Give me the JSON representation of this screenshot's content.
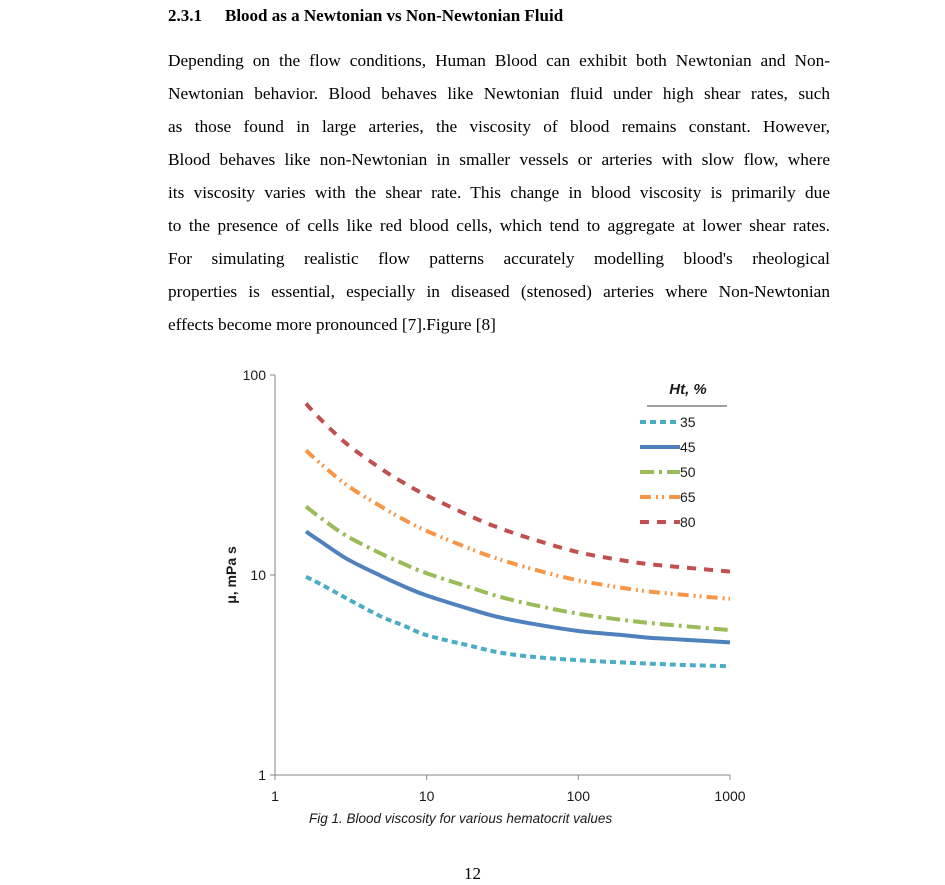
{
  "section": {
    "number": "2.3.1",
    "title": "Blood as a Newtonian vs Non-Newtonian Fluid"
  },
  "paragraph_lines": [
    "Depending on the flow conditions, Human Blood can exhibit both Newtonian and Non-",
    "Newtonian behavior. Blood behaves like Newtonian fluid under high shear rates, such",
    "as those found in large arteries, the viscosity of blood remains constant. However,",
    "Blood behaves like non-Newtonian in smaller vessels or arteries with slow flow, where",
    "its viscosity varies with the shear rate. This change in blood viscosity is primarily due",
    "to the presence of cells like red blood cells, which tend to aggregate at lower shear rates.",
    "For simulating realistic flow patterns accurately modelling blood's rheological",
    "properties is essential, especially in diseased (stenosed) arteries where Non-Newtonian",
    "effects become more pronounced [7].Figure [8]"
  ],
  "chart_data": {
    "type": "line",
    "x_scale": "log",
    "y_scale": "log",
    "xlim": [
      1,
      1000
    ],
    "ylim": [
      1,
      100
    ],
    "xticks": [
      "1",
      "10",
      "100",
      "1000"
    ],
    "yticks": [
      "1",
      "10",
      "100"
    ],
    "xlabel": "",
    "ylabel": "μ, mPa s",
    "grid": false,
    "legend_title": "Ht, %",
    "legend_position": "top-right",
    "x": [
      1.6,
      2,
      3,
      5,
      7,
      10,
      20,
      30,
      50,
      100,
      200,
      300,
      500,
      1000
    ],
    "series": [
      {
        "name": "35",
        "color": "#4bacc6",
        "dash": "dashed",
        "values": [
          9.8,
          9.0,
          7.6,
          6.2,
          5.6,
          5.0,
          4.4,
          4.1,
          3.9,
          3.75,
          3.65,
          3.6,
          3.55,
          3.5
        ]
      },
      {
        "name": "45",
        "color": "#4f81bd",
        "dash": "solid",
        "values": [
          16.5,
          14.7,
          12.0,
          9.9,
          8.8,
          7.9,
          6.7,
          6.15,
          5.7,
          5.25,
          5.0,
          4.85,
          4.75,
          4.6
        ]
      },
      {
        "name": "50",
        "color": "#9bbb59",
        "dash": "dashdot",
        "values": [
          22,
          19.3,
          15.6,
          12.8,
          11.4,
          10.2,
          8.6,
          7.8,
          7.1,
          6.4,
          5.95,
          5.75,
          5.55,
          5.3
        ]
      },
      {
        "name": "65",
        "color": "#f79646",
        "dash": "dashdotdot",
        "values": [
          42,
          36,
          28,
          22,
          19,
          16.6,
          13.4,
          12.0,
          10.7,
          9.4,
          8.6,
          8.25,
          7.95,
          7.6
        ]
      },
      {
        "name": "80",
        "color": "#c0504d",
        "dash": "dashed-long",
        "values": [
          72,
          60,
          45,
          34,
          29,
          25,
          19.5,
          17.2,
          15.1,
          13.0,
          11.8,
          11.3,
          10.9,
          10.4
        ]
      }
    ]
  },
  "caption": "Fig 1. Blood viscosity for various hematocrit values",
  "page_number": "12"
}
